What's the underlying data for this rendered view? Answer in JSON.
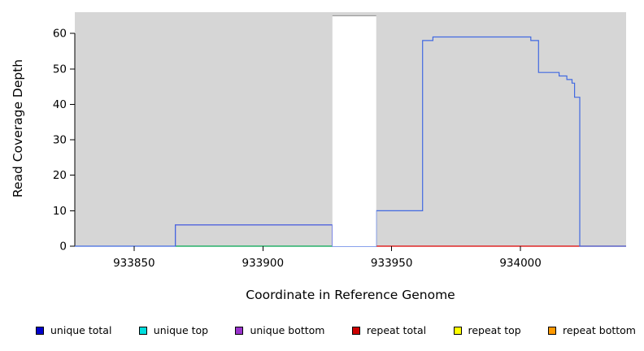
{
  "chart_data": {
    "type": "line",
    "subtype": "step-coverage",
    "title": "",
    "xlabel": "Coordinate in Reference Genome",
    "ylabel": "Read Coverage Depth",
    "xlim": [
      933827,
      934041
    ],
    "ylim": [
      0,
      66
    ],
    "xticks": [
      933850,
      933900,
      933950,
      934000
    ],
    "yticks": [
      0,
      10,
      20,
      30,
      40,
      50,
      60
    ],
    "grid": false,
    "legend_position": "bottom",
    "panel_background": "#d6d6d6",
    "axis_color": "#000000",
    "gap_region": {
      "x_start": 933927,
      "x_end": 933944,
      "fill": "#ffffff",
      "top_value": 65,
      "top_edge_color": "#8c8c8c",
      "note": "coverage exceeds y-axis range"
    },
    "series": [
      {
        "name": "repeat total",
        "color": "#dd0000",
        "points": [
          [
            933944,
            0
          ],
          [
            934041,
            0
          ]
        ]
      },
      {
        "name": "unique top",
        "color": "#00a550",
        "points": [
          [
            933866,
            0
          ],
          [
            933927,
            0
          ]
        ]
      },
      {
        "name": "unique bottom",
        "color": "#9933cc",
        "points": [
          [
            933866,
            0
          ],
          [
            933866,
            6
          ],
          [
            933927,
            6
          ],
          [
            933927,
            0
          ]
        ]
      },
      {
        "name": "unique total",
        "color": "#4169e1",
        "points": [
          [
            933827,
            0
          ],
          [
            933866,
            0
          ],
          [
            933866,
            6
          ],
          [
            933927,
            6
          ],
          [
            933927,
            0
          ],
          [
            933944,
            0
          ],
          [
            933944,
            10
          ],
          [
            933962,
            10
          ],
          [
            933962,
            58
          ],
          [
            933966,
            58
          ],
          [
            933966,
            59
          ],
          [
            934004,
            59
          ],
          [
            934004,
            58
          ],
          [
            934007,
            58
          ],
          [
            934007,
            49
          ],
          [
            934015,
            49
          ],
          [
            934015,
            48
          ],
          [
            934018,
            48
          ],
          [
            934018,
            47
          ],
          [
            934020,
            47
          ],
          [
            934020,
            46
          ],
          [
            934021,
            46
          ],
          [
            934021,
            42
          ],
          [
            934023,
            42
          ],
          [
            934023,
            0
          ],
          [
            934041,
            0
          ]
        ]
      }
    ],
    "legend": [
      {
        "label": "unique total",
        "color": "#0000cc"
      },
      {
        "label": "unique top",
        "color": "#00dddd"
      },
      {
        "label": "unique bottom",
        "color": "#9933cc"
      },
      {
        "label": "repeat total",
        "color": "#cc0000"
      },
      {
        "label": "repeat top",
        "color": "#ffff00"
      },
      {
        "label": "repeat bottom",
        "color": "#ff9900"
      }
    ]
  }
}
